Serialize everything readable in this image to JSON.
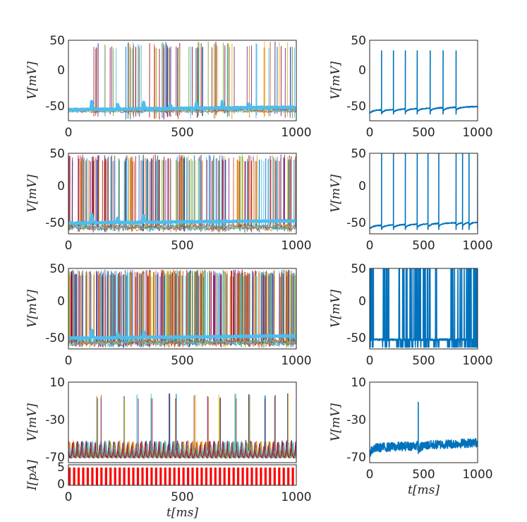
{
  "colors": {
    "highlight": "#4DBEEE",
    "single_trace": "#0072BD",
    "current": "#FF0000",
    "axis": "#262626",
    "palette": [
      "#0072BD",
      "#D95319",
      "#EDB120",
      "#7E2F8E",
      "#77AC30",
      "#4DBEEE",
      "#A2142F"
    ]
  },
  "chart_data": [
    {
      "id": "A1",
      "type": "line",
      "description": "ensemble voltage traces, low activity",
      "x_ticks": [
        "0",
        "500",
        "1000"
      ],
      "y_ticks": [
        "50",
        "0",
        "-50"
      ],
      "xlim": [
        0,
        1000
      ],
      "ylim": [
        -80,
        50
      ],
      "ylabel": "V[mV]",
      "density": 0.15,
      "highlight_bumps_ms": [
        100,
        215,
        330,
        445,
        560,
        675,
        790
      ]
    },
    {
      "id": "A2",
      "type": "line",
      "description": "ensemble voltage traces, medium activity",
      "x_ticks": [
        "0",
        "500",
        "1000"
      ],
      "y_ticks": [
        "50",
        "0",
        "-50"
      ],
      "xlim": [
        0,
        1000
      ],
      "ylim": [
        -80,
        55
      ],
      "ylabel": "V[mV]",
      "density": 0.5,
      "highlight_bumps_ms": [
        100,
        215,
        330
      ]
    },
    {
      "id": "A3",
      "type": "line",
      "description": "ensemble voltage traces, high activity",
      "x_ticks": [
        "0",
        "500",
        "1000"
      ],
      "y_ticks": [
        "50",
        "0",
        "-50"
      ],
      "xlim": [
        0,
        1000
      ],
      "ylim": [
        -80,
        55
      ],
      "ylabel": "V[mV]",
      "density": 1.0,
      "highlight_bumps_ms": [
        100,
        215,
        330
      ]
    },
    {
      "id": "A4",
      "type": "line",
      "description": "ensemble voltage traces, subthreshold with bursts",
      "x_ticks": [],
      "y_ticks": [
        "10",
        "-30",
        "-70"
      ],
      "xlim": [
        0,
        1000
      ],
      "ylim": [
        -78,
        10
      ],
      "ylabel": "V[mV]",
      "spike_times_ms": [
        120,
        140,
        240,
        300,
        360,
        440,
        470,
        550,
        610,
        660,
        730,
        790,
        860,
        900,
        960
      ]
    },
    {
      "id": "I",
      "type": "bar",
      "description": "input current pulses",
      "x_ticks": [
        "0",
        "500",
        "1000"
      ],
      "y_ticks": [
        "5",
        "0"
      ],
      "xlim": [
        0,
        1000
      ],
      "ylim": [
        0,
        6
      ],
      "ylabel": "I[pA]",
      "xlabel": "t[ms]",
      "pulse_period_ms": 20,
      "pulse_width_ms": 10,
      "amplitude": 5.2
    },
    {
      "id": "B1",
      "type": "line",
      "description": "single neuron voltage trace",
      "x_ticks": [
        "0",
        "500",
        "1000"
      ],
      "y_ticks": [
        "50",
        "0",
        "-50"
      ],
      "xlim": [
        0,
        1000
      ],
      "ylim": [
        -80,
        50
      ],
      "ylabel": "V[mV]",
      "spike_times_ms": [
        110,
        220,
        330,
        440,
        560,
        680,
        800
      ],
      "spike_peak": 33,
      "rest": -63
    },
    {
      "id": "B2",
      "type": "line",
      "description": "single neuron voltage trace",
      "x_ticks": [
        "0",
        "500",
        "1000"
      ],
      "y_ticks": [
        "50",
        "0",
        "-50"
      ],
      "xlim": [
        0,
        1000
      ],
      "ylim": [
        -80,
        50
      ],
      "ylabel": "V[mV]",
      "spike_times_ms": [
        110,
        220,
        330,
        440,
        540,
        640,
        800,
        860,
        920,
        1000
      ],
      "spike_peak": 55,
      "rest": -67
    },
    {
      "id": "B3",
      "type": "line",
      "description": "single neuron voltage trace, dense firing",
      "x_ticks": [
        "0",
        "500",
        "1000"
      ],
      "y_ticks": [
        "50",
        "0",
        "-50"
      ],
      "xlim": [
        0,
        1000
      ],
      "ylim": [
        -80,
        50
      ],
      "ylabel": "V[mV]",
      "dense_spikes": true,
      "spike_peak": 55,
      "rest": -65
    },
    {
      "id": "B4",
      "type": "line",
      "description": "single neuron voltage trace, subthreshold",
      "x_ticks": [
        "0",
        "500",
        "1000"
      ],
      "y_ticks": [
        "10",
        "-30",
        "-70"
      ],
      "xlim": [
        0,
        1000
      ],
      "ylim": [
        -78,
        10
      ],
      "ylabel": "V[mV]",
      "xlabel": "t[ms]",
      "spike_times_ms": [
        450
      ],
      "spike_peak": -12,
      "rest": -62
    }
  ]
}
